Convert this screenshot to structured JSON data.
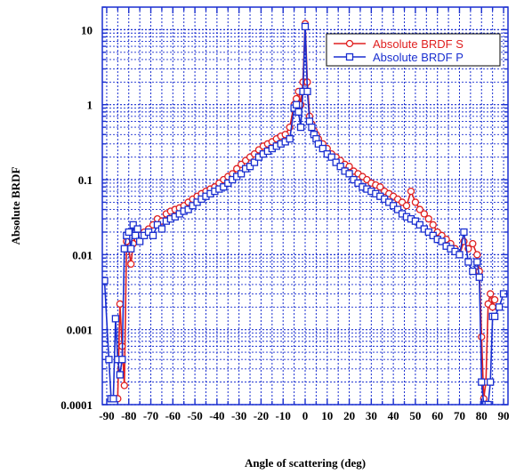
{
  "chart_data": {
    "type": "line",
    "title": "",
    "xlabel": "Angle of scattering (deg)",
    "ylabel": "Absolute BRDF",
    "xlim": [
      -92,
      92
    ],
    "ylim": [
      0.0001,
      20
    ],
    "yscale": "log",
    "grid": true,
    "legend_position": "top-right",
    "x_ticks": [
      -90,
      -80,
      -70,
      -60,
      -50,
      -40,
      -30,
      -20,
      -10,
      0,
      10,
      20,
      30,
      40,
      50,
      60,
      70,
      80,
      90
    ],
    "x_tick_labels": [
      "-90",
      "-80",
      "-70",
      "-60",
      "-50",
      "-40",
      "-30",
      "-20",
      "-10",
      "0",
      "10",
      "20",
      "30",
      "40",
      "50",
      "60",
      "70",
      "80",
      "90"
    ],
    "y_ticks": [
      0.0001,
      0.001,
      0.01,
      0.1,
      1,
      10
    ],
    "y_tick_labels": [
      "0.0001",
      "0.001",
      "0.01",
      "0.1",
      "1",
      "10"
    ],
    "series": [
      {
        "name": "Absolute BRDF S",
        "color": "#e02020",
        "marker": "circle",
        "x": [
          -85,
          -84,
          -83,
          -82,
          -81,
          -80,
          -79,
          -78,
          -77,
          -76,
          -75,
          -73,
          -71,
          -69,
          -67,
          -65,
          -63,
          -61,
          -59,
          -57,
          -55,
          -53,
          -51,
          -49,
          -47,
          -45,
          -43,
          -41,
          -39,
          -37,
          -35,
          -33,
          -31,
          -29,
          -27,
          -25,
          -23,
          -21,
          -19,
          -17,
          -15,
          -13,
          -11,
          -9,
          -7,
          -5,
          -4,
          -3,
          -2,
          -1,
          0,
          1,
          2,
          3,
          4,
          5,
          6,
          8,
          10,
          12,
          14,
          16,
          18,
          20,
          22,
          24,
          26,
          28,
          30,
          32,
          34,
          36,
          38,
          40,
          42,
          44,
          46,
          48,
          50,
          52,
          54,
          56,
          58,
          60,
          62,
          64,
          66,
          68,
          70,
          72,
          74,
          76,
          78,
          79,
          80,
          81,
          82,
          83,
          84,
          85,
          86
        ],
        "y": [
          0.00012,
          0.0022,
          0.0006,
          0.00018,
          0.015,
          0.012,
          0.0075,
          0.014,
          0.02,
          0.016,
          0.018,
          0.02,
          0.022,
          0.025,
          0.03,
          0.028,
          0.035,
          0.038,
          0.04,
          0.042,
          0.045,
          0.05,
          0.055,
          0.06,
          0.065,
          0.07,
          0.075,
          0.08,
          0.09,
          0.1,
          0.11,
          0.12,
          0.14,
          0.16,
          0.18,
          0.2,
          0.22,
          0.25,
          0.28,
          0.3,
          0.32,
          0.35,
          0.38,
          0.4,
          0.5,
          1.0,
          1.2,
          1.5,
          1.0,
          2.0,
          12.0,
          2.0,
          0.7,
          0.55,
          0.45,
          0.4,
          0.35,
          0.3,
          0.26,
          0.22,
          0.2,
          0.18,
          0.16,
          0.15,
          0.13,
          0.12,
          0.11,
          0.1,
          0.09,
          0.085,
          0.08,
          0.07,
          0.065,
          0.06,
          0.055,
          0.05,
          0.045,
          0.07,
          0.05,
          0.04,
          0.035,
          0.03,
          0.025,
          0.02,
          0.018,
          0.016,
          0.014,
          0.012,
          0.01,
          0.015,
          0.012,
          0.014,
          0.01,
          0.006,
          0.0008,
          0.00012,
          0.0002,
          0.0022,
          0.003,
          0.002,
          0.0025
        ]
      },
      {
        "name": "Absolute BRDF P",
        "color": "#1a2fd0",
        "marker": "square",
        "x": [
          -91,
          -89,
          -88,
          -87,
          -86,
          -85,
          -84,
          -83,
          -82,
          -81,
          -80,
          -79,
          -78,
          -77,
          -76,
          -75,
          -73,
          -71,
          -69,
          -67,
          -65,
          -63,
          -61,
          -59,
          -57,
          -55,
          -53,
          -51,
          -49,
          -47,
          -45,
          -43,
          -41,
          -39,
          -37,
          -35,
          -33,
          -31,
          -29,
          -27,
          -25,
          -23,
          -21,
          -19,
          -17,
          -15,
          -13,
          -11,
          -9,
          -7,
          -5,
          -4,
          -3,
          -2,
          -1,
          0,
          1,
          2,
          3,
          4,
          5,
          6,
          8,
          10,
          12,
          14,
          16,
          18,
          20,
          22,
          24,
          26,
          28,
          30,
          32,
          34,
          36,
          38,
          40,
          42,
          44,
          46,
          48,
          50,
          52,
          54,
          56,
          58,
          60,
          62,
          64,
          66,
          68,
          70,
          72,
          74,
          76,
          78,
          79,
          80,
          81,
          82,
          83,
          84,
          85,
          86,
          88,
          90
        ],
        "y": [
          0.0045,
          0.0004,
          0.00012,
          0.00012,
          0.0014,
          0.0004,
          0.00025,
          0.0004,
          0.012,
          0.018,
          0.02,
          0.012,
          0.025,
          0.018,
          0.022,
          0.015,
          0.018,
          0.02,
          0.018,
          0.025,
          0.022,
          0.028,
          0.03,
          0.032,
          0.035,
          0.038,
          0.04,
          0.045,
          0.05,
          0.055,
          0.06,
          0.065,
          0.07,
          0.075,
          0.08,
          0.09,
          0.1,
          0.11,
          0.12,
          0.14,
          0.15,
          0.17,
          0.2,
          0.22,
          0.24,
          0.26,
          0.28,
          0.3,
          0.32,
          0.35,
          0.9,
          1.0,
          0.8,
          0.5,
          1.5,
          11.0,
          1.5,
          0.6,
          0.5,
          0.4,
          0.35,
          0.3,
          0.26,
          0.22,
          0.2,
          0.17,
          0.15,
          0.13,
          0.12,
          0.1,
          0.09,
          0.08,
          0.075,
          0.07,
          0.065,
          0.06,
          0.055,
          0.05,
          0.045,
          0.04,
          0.035,
          0.032,
          0.03,
          0.028,
          0.025,
          0.022,
          0.02,
          0.018,
          0.016,
          0.015,
          0.013,
          0.012,
          0.011,
          0.01,
          0.02,
          0.008,
          0.006,
          0.008,
          0.005,
          0.0002,
          0.0001,
          0.0001,
          0.0001,
          0.0002,
          0.0015,
          0.0015,
          0.002,
          0.003
        ]
      }
    ]
  }
}
